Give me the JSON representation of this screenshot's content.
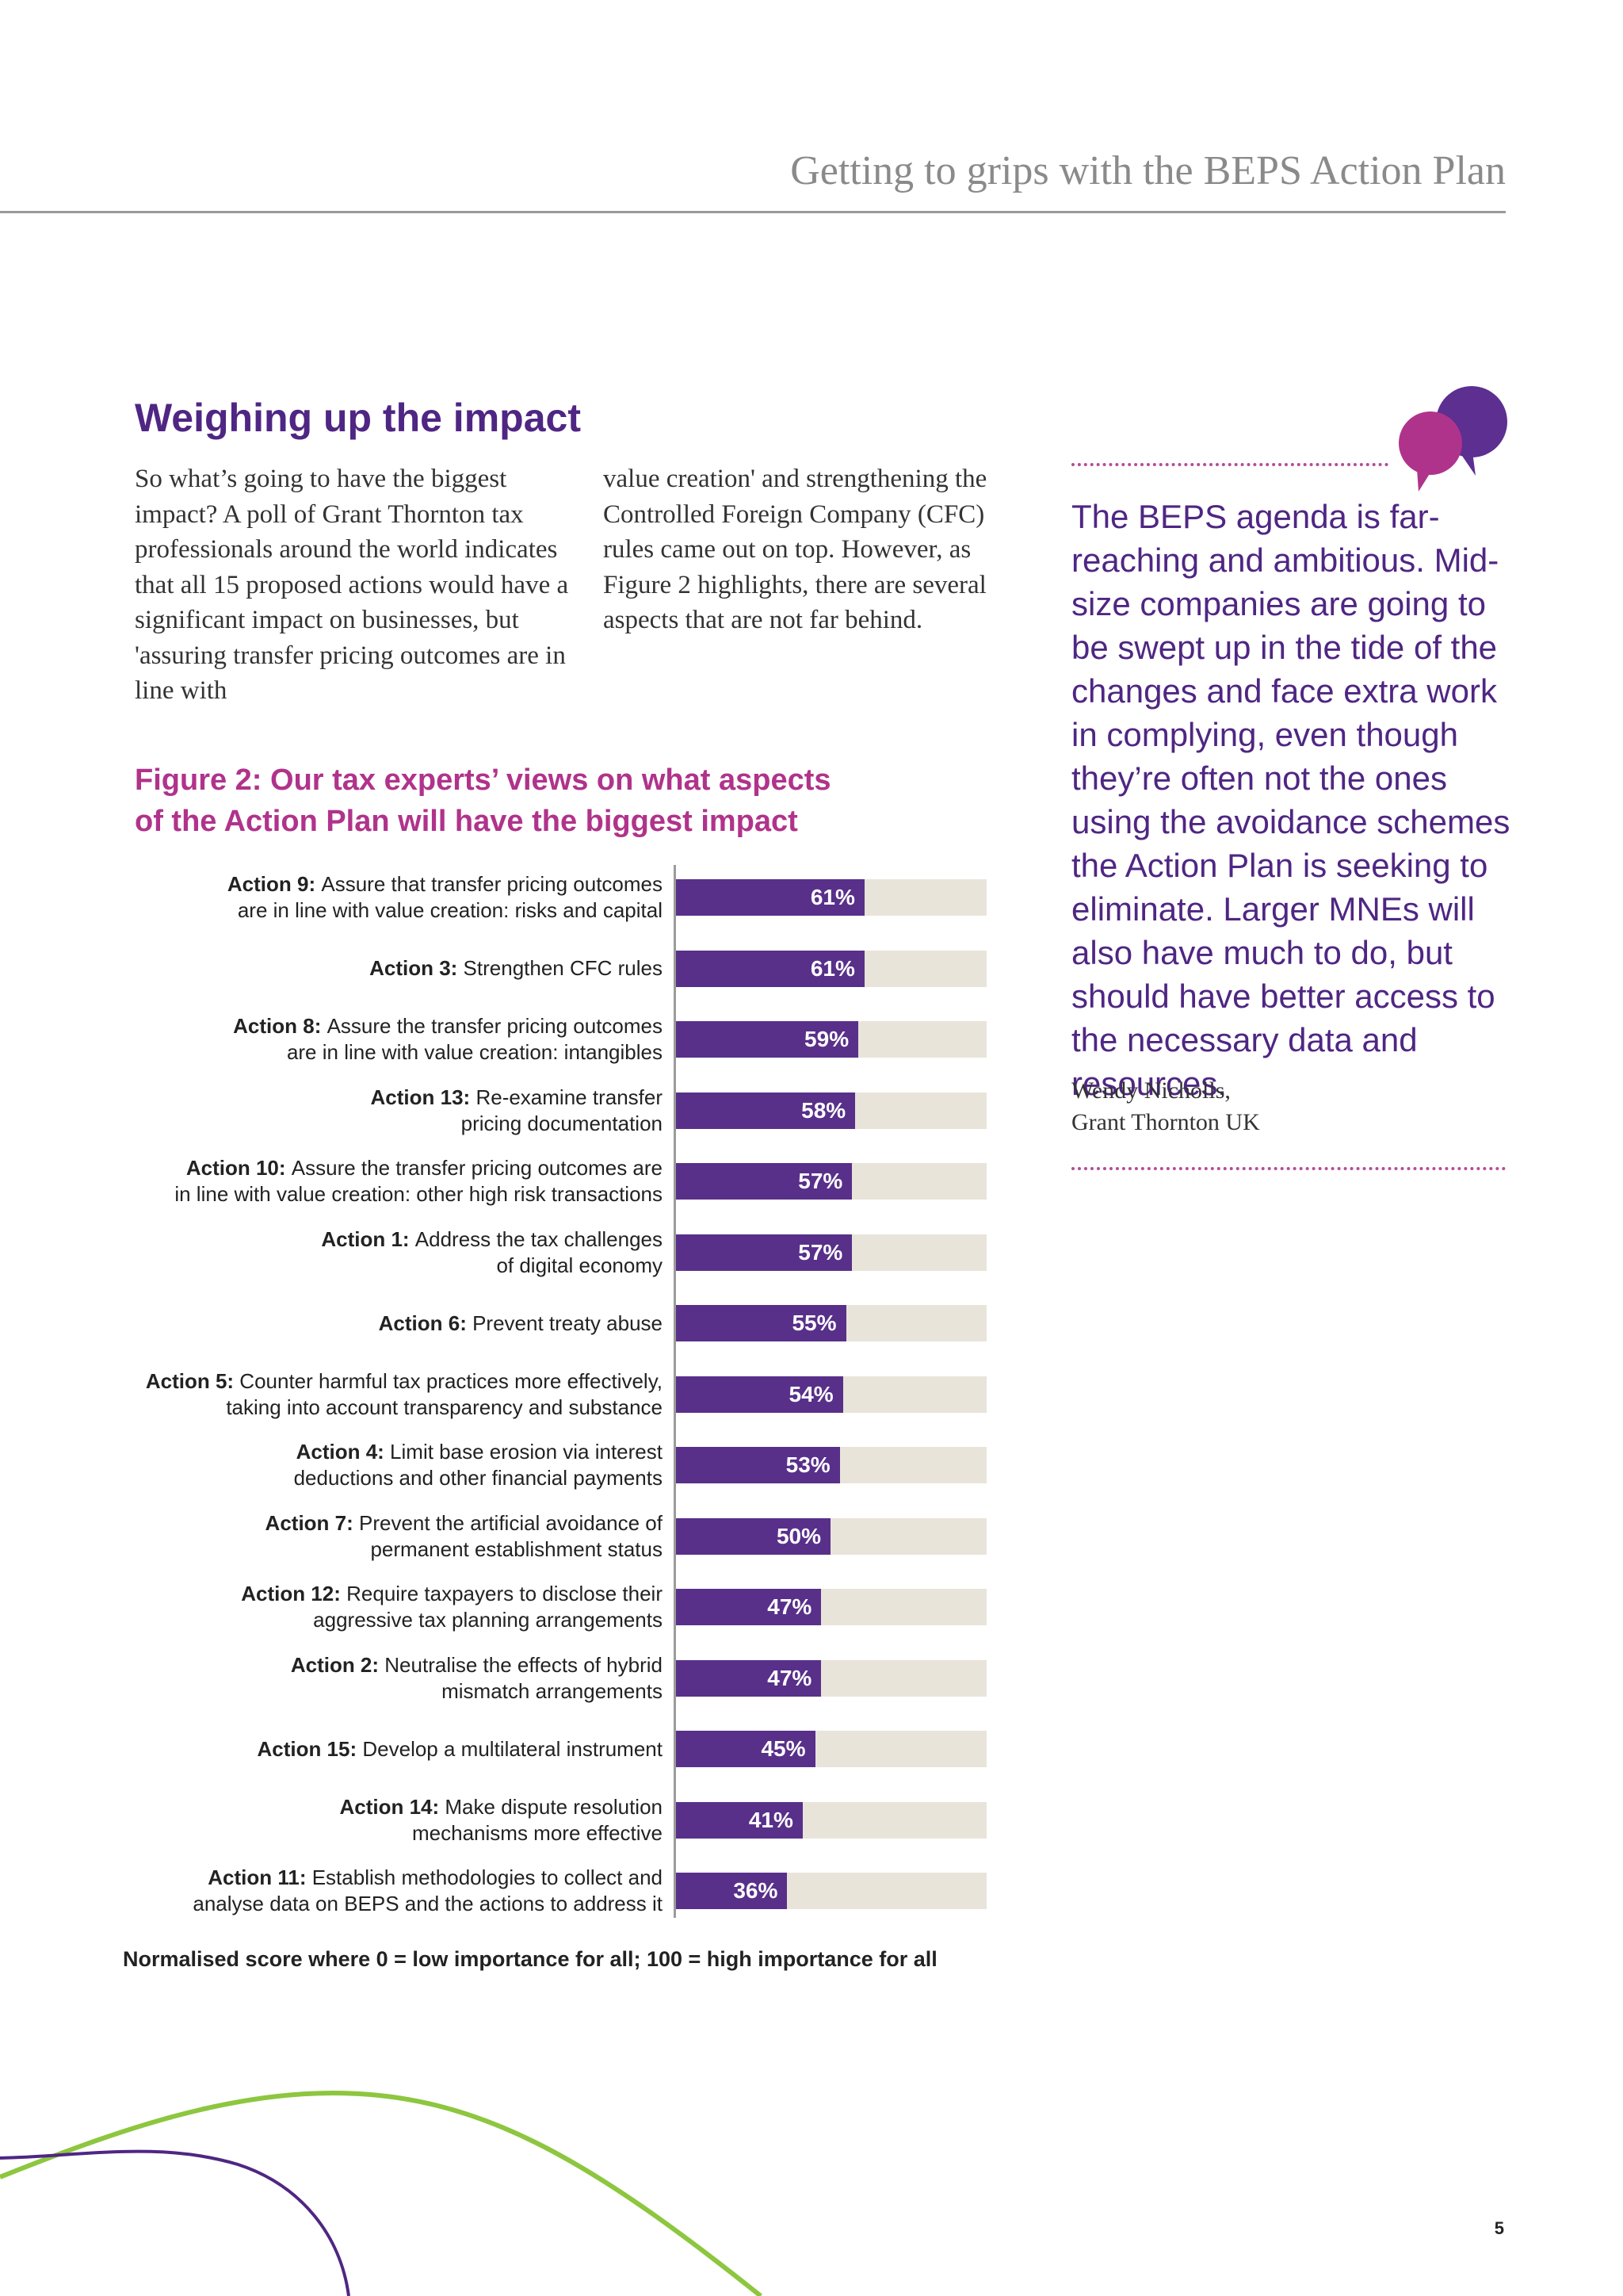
{
  "header": {
    "running_title": "Getting to grips with the BEPS Action Plan"
  },
  "section": {
    "title": "Weighing up the impact",
    "body_col1": "So what’s going to have the biggest impact? A poll of Grant Thornton tax professionals around the world indicates that all 15 proposed actions would have a significant impact on businesses, but 'assuring transfer pricing outcomes are in line with",
    "body_col2": "value creation' and strengthening the Controlled Foreign Company (CFC) rules came out on top. However, as Figure 2 highlights, there are several aspects that are not far behind."
  },
  "figure": {
    "title": "Figure 2: Our tax experts’ views on what aspects of the Action Plan will have the biggest impact",
    "note": "Normalised score where 0 = low importance for all; 100 = high importance for all"
  },
  "chart_data": {
    "type": "bar",
    "orientation": "horizontal",
    "xlim": [
      0,
      100
    ],
    "grid": false,
    "legend": "none",
    "categories": [
      {
        "action": "Action 9:",
        "lines": [
          "Assure that transfer pricing outcomes",
          "are in line with value creation: risks and capital"
        ]
      },
      {
        "action": "Action 3:",
        "lines": [
          "Strengthen CFC rules"
        ]
      },
      {
        "action": "Action 8:",
        "lines": [
          "Assure the transfer pricing outcomes",
          "are in line with value creation: intangibles"
        ]
      },
      {
        "action": "Action 13:",
        "lines": [
          "Re-examine transfer",
          "pricing documentation"
        ]
      },
      {
        "action": "Action 10:",
        "lines": [
          "Assure the transfer pricing outcomes are",
          "in line with value creation: other high risk transactions"
        ]
      },
      {
        "action": "Action 1:",
        "lines": [
          "Address the tax challenges",
          "of digital economy"
        ]
      },
      {
        "action": "Action 6:",
        "lines": [
          "Prevent treaty abuse"
        ]
      },
      {
        "action": "Action 5:",
        "lines": [
          "Counter harmful tax practices more effectively,",
          "taking into account transparency and substance"
        ]
      },
      {
        "action": "Action 4:",
        "lines": [
          "Limit base erosion via interest",
          "deductions and other financial payments"
        ]
      },
      {
        "action": "Action 7:",
        "lines": [
          "Prevent the artificial avoidance of",
          "permanent establishment status"
        ]
      },
      {
        "action": "Action 12:",
        "lines": [
          "Require taxpayers to disclose their",
          "aggressive tax planning arrangements"
        ]
      },
      {
        "action": "Action 2:",
        "lines": [
          "Neutralise the effects of hybrid",
          "mismatch arrangements"
        ]
      },
      {
        "action": "Action 15:",
        "lines": [
          "Develop a multilateral instrument"
        ]
      },
      {
        "action": "Action 14:",
        "lines": [
          "Make dispute resolution",
          "mechanisms more effective"
        ]
      },
      {
        "action": "Action 11:",
        "lines": [
          "Establish methodologies to collect and",
          "analyse data on BEPS and the actions to address it"
        ]
      }
    ],
    "values": [
      61,
      61,
      59,
      58,
      57,
      57,
      55,
      54,
      53,
      50,
      47,
      47,
      45,
      41,
      36
    ],
    "value_labels": [
      "61%",
      "61%",
      "59%",
      "58%",
      "57%",
      "57%",
      "55%",
      "54%",
      "53%",
      "50%",
      "47%",
      "47%",
      "45%",
      "41%",
      "36%"
    ],
    "colors": {
      "bar": "#58308a",
      "track": "#e9e4da",
      "label": "#ffffff"
    }
  },
  "sidebar": {
    "quote": "The BEPS agenda is far-reaching and ambitious. Mid-size companies are going to be swept up in the tide of the changes and face extra work in complying, even though they’re often not the ones using the avoidance schemes the Action Plan is seeking to eliminate. Larger MNEs will also have much to do, but should have better access to the necessary data and resources.",
    "author": "Wendy Nicholls,",
    "organisation": "Grant Thornton UK",
    "icon": "speech-bubbles-icon"
  },
  "footer": {
    "page_number": "5"
  },
  "colors": {
    "purple": "#4f2683",
    "magenta": "#b0338b",
    "green": "#8dc63f"
  }
}
